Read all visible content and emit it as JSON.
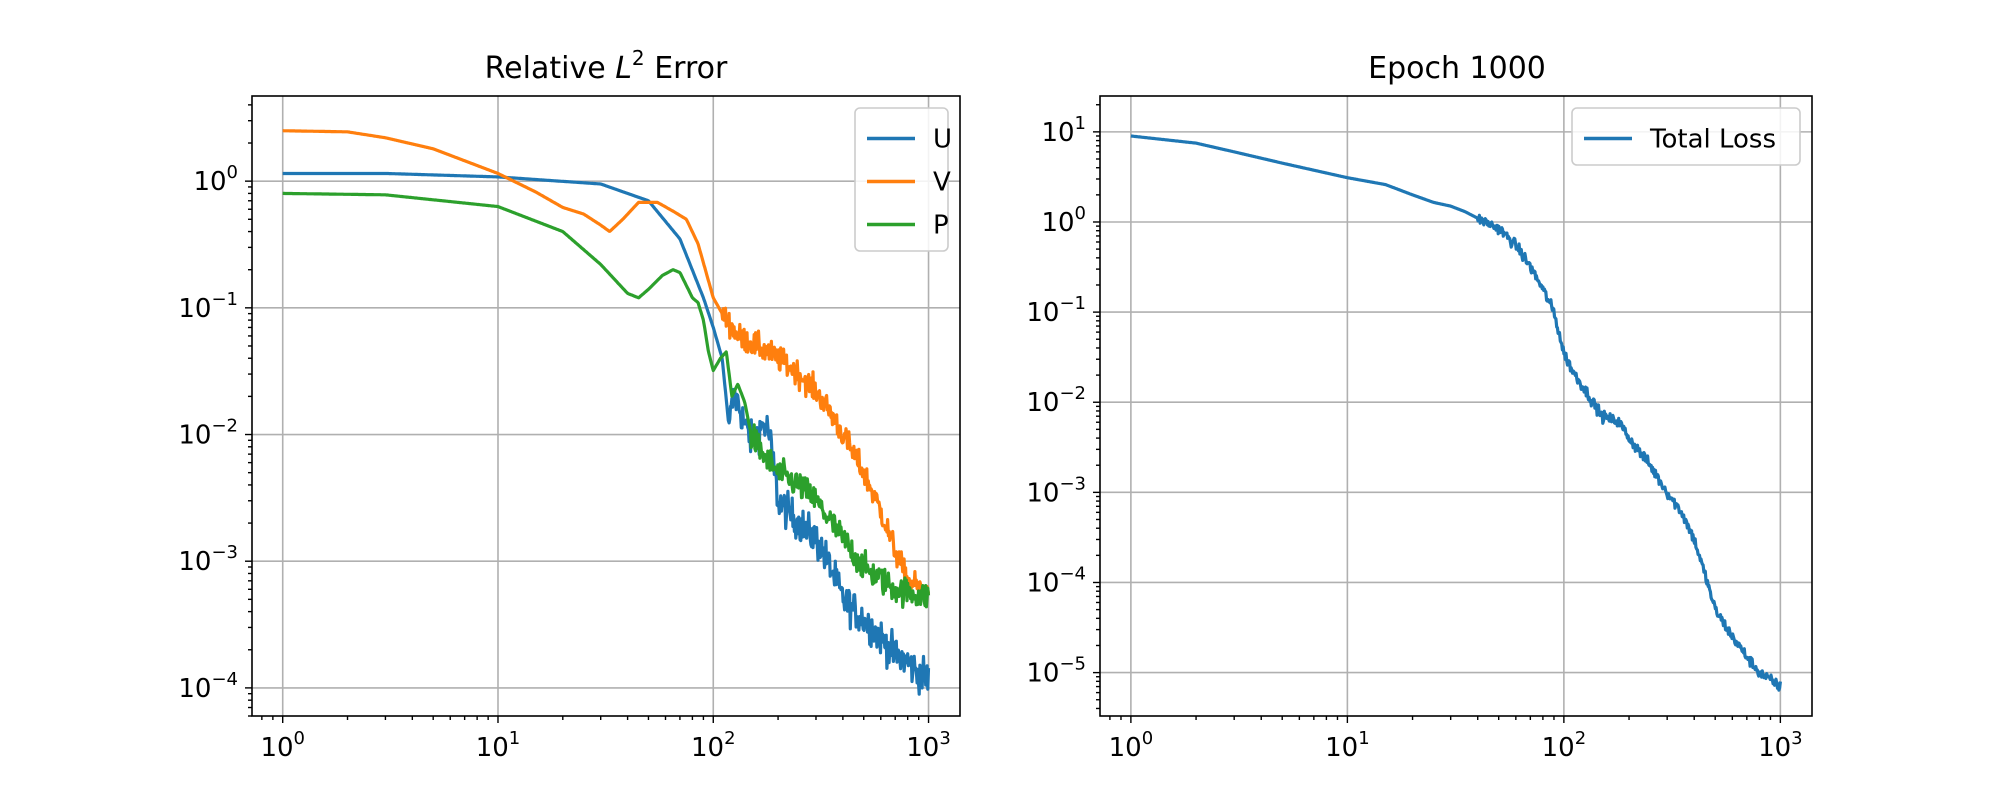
{
  "chart_data": [
    {
      "type": "line",
      "title_parts": {
        "before": "Relative ",
        "var": "L",
        "sup": "2",
        "after": " Error"
      },
      "xlabel": "",
      "ylabel": "",
      "xscale": "log",
      "yscale": "log",
      "xlim": [
        0.72,
        1400
      ],
      "ylim": [
        6e-05,
        4.7
      ],
      "grid": true,
      "legend": {
        "placement": "top-right"
      },
      "x_ticks": [
        {
          "base": "10",
          "exp": "0"
        },
        {
          "base": "10",
          "exp": "1"
        },
        {
          "base": "10",
          "exp": "2"
        },
        {
          "base": "10",
          "exp": "3"
        }
      ],
      "y_ticks": [
        {
          "base": "10",
          "exp": "0"
        },
        {
          "base": "10",
          "exp": "−1"
        },
        {
          "base": "10",
          "exp": "−2"
        },
        {
          "base": "10",
          "exp": "−3"
        },
        {
          "base": "10",
          "exp": "−4"
        }
      ],
      "series": [
        {
          "name": "U",
          "color": "#1f77b4",
          "noise": 0.28,
          "noise_start": 120,
          "x": [
            1,
            3,
            10,
            30,
            50,
            70,
            90,
            100,
            110,
            118,
            125,
            130,
            140,
            150,
            160,
            170,
            180,
            190,
            200,
            220,
            250,
            300,
            350,
            400,
            500,
            600,
            700,
            800,
            900,
            1000
          ],
          "values": [
            1.15,
            1.15,
            1.08,
            0.95,
            0.7,
            0.35,
            0.12,
            0.07,
            0.04,
            0.012,
            0.02,
            0.018,
            0.012,
            0.009,
            0.01,
            0.012,
            0.011,
            0.006,
            0.003,
            0.0025,
            0.002,
            0.0015,
            0.0009,
            0.0005,
            0.00035,
            0.00025,
            0.00018,
            0.00016,
            0.00013,
            0.00012
          ]
        },
        {
          "name": "V",
          "color": "#ff7f0e",
          "noise": 0.2,
          "noise_start": 110,
          "x": [
            1,
            2,
            3,
            5,
            10,
            15,
            20,
            25,
            30,
            33,
            38,
            45,
            55,
            65,
            75,
            85,
            100,
            110,
            130,
            160,
            200,
            250,
            300,
            350,
            400,
            500,
            600,
            700,
            800,
            1000
          ],
          "values": [
            2.5,
            2.45,
            2.2,
            1.8,
            1.15,
            0.82,
            0.62,
            0.55,
            0.45,
            0.4,
            0.5,
            0.68,
            0.68,
            0.58,
            0.5,
            0.32,
            0.12,
            0.09,
            0.06,
            0.05,
            0.04,
            0.03,
            0.022,
            0.015,
            0.01,
            0.005,
            0.0025,
            0.0012,
            0.0007,
            0.00055
          ]
        },
        {
          "name": "P",
          "color": "#2ca02c",
          "noise": 0.22,
          "noise_start": 150,
          "x": [
            1,
            3,
            10,
            20,
            30,
            40,
            45,
            50,
            58,
            65,
            70,
            75,
            80,
            85,
            90,
            95,
            100,
            108,
            115,
            122,
            130,
            140,
            150,
            170,
            200,
            250,
            300,
            400,
            500,
            700,
            1000
          ],
          "values": [
            0.8,
            0.78,
            0.63,
            0.4,
            0.22,
            0.13,
            0.12,
            0.14,
            0.18,
            0.2,
            0.19,
            0.15,
            0.12,
            0.11,
            0.08,
            0.045,
            0.032,
            0.04,
            0.045,
            0.02,
            0.025,
            0.018,
            0.01,
            0.007,
            0.005,
            0.004,
            0.003,
            0.0015,
            0.0009,
            0.0006,
            0.00052
          ]
        }
      ]
    },
    {
      "type": "line",
      "title": "Epoch 1000",
      "xlabel": "",
      "ylabel": "",
      "xscale": "log",
      "yscale": "log",
      "xlim": [
        0.72,
        1400
      ],
      "ylim": [
        3.3e-06,
        25
      ],
      "grid": true,
      "legend": {
        "placement": "top-right"
      },
      "x_ticks": [
        {
          "base": "10",
          "exp": "0"
        },
        {
          "base": "10",
          "exp": "1"
        },
        {
          "base": "10",
          "exp": "2"
        },
        {
          "base": "10",
          "exp": "3"
        }
      ],
      "y_ticks": [
        {
          "base": "10",
          "exp": "1"
        },
        {
          "base": "10",
          "exp": "0"
        },
        {
          "base": "10",
          "exp": "−1"
        },
        {
          "base": "10",
          "exp": "−2"
        },
        {
          "base": "10",
          "exp": "−3"
        },
        {
          "base": "10",
          "exp": "−4"
        },
        {
          "base": "10",
          "exp": "−5"
        }
      ],
      "series": [
        {
          "name": "Total Loss",
          "color": "#1f77b4",
          "noise": 0.12,
          "noise_start": 40,
          "x": [
            1,
            2,
            3,
            5,
            10,
            15,
            20,
            25,
            30,
            35,
            40,
            50,
            60,
            70,
            80,
            90,
            100,
            110,
            130,
            150,
            180,
            200,
            250,
            300,
            350,
            400,
            450,
            500,
            600,
            700,
            800,
            1000
          ],
          "values": [
            9,
            7.5,
            6,
            4.5,
            3.1,
            2.6,
            2,
            1.65,
            1.5,
            1.3,
            1.1,
            0.85,
            0.55,
            0.32,
            0.18,
            0.1,
            0.035,
            0.022,
            0.012,
            0.007,
            0.006,
            0.004,
            0.002,
            0.001,
            0.0006,
            0.0003,
            0.00012,
            5e-05,
            2.5e-05,
            1.5e-05,
            1e-05,
            7e-06
          ]
        }
      ]
    }
  ]
}
